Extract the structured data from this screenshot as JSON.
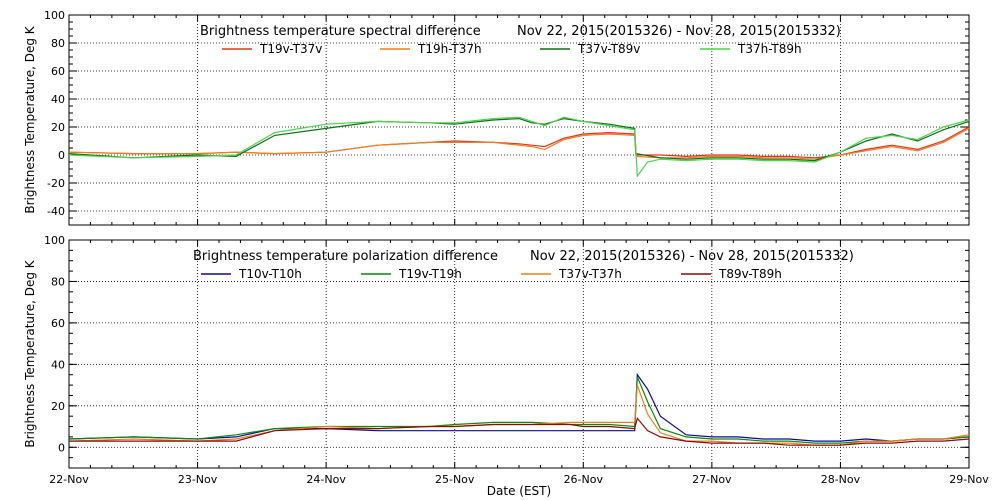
{
  "chart_data": [
    {
      "type": "line",
      "title": "Brightness temperature spectral difference",
      "date_range": "Nov 22, 2015(2015326) - Nov 28, 2015(2015332)",
      "ylabel": "Brightness Temperature, Deg K",
      "xlabel": "",
      "xlim": [
        0,
        7
      ],
      "ylim": [
        -50,
        100
      ],
      "yticks": [
        -40,
        -20,
        0,
        20,
        40,
        60,
        80,
        100
      ],
      "grid": true,
      "legend_position": "top",
      "series": [
        {
          "name": "T19v-T37v",
          "color": "#e8321e",
          "x": [
            0,
            0.5,
            1,
            1.3,
            1.6,
            2,
            2.4,
            2.8,
            3,
            3.3,
            3.5,
            3.6,
            3.7,
            3.85,
            4,
            4.2,
            4.4,
            4.41,
            4.6,
            4.8,
            5,
            5.2,
            5.4,
            5.6,
            5.8,
            6,
            6.2,
            6.4,
            6.6,
            6.8,
            7
          ],
          "y": [
            2,
            1,
            1,
            2,
            1,
            2,
            7,
            9,
            10,
            9,
            8,
            7,
            6,
            12,
            15,
            16,
            15,
            0,
            0,
            -1,
            0,
            0,
            -1,
            -1,
            -2,
            0,
            4,
            7,
            4,
            10,
            20
          ]
        },
        {
          "name": "T19h-T37h",
          "color": "#e8801e",
          "x": [
            0,
            0.5,
            1,
            1.3,
            1.6,
            2,
            2.4,
            2.8,
            3,
            3.3,
            3.5,
            3.6,
            3.7,
            3.85,
            4,
            4.2,
            4.4,
            4.41,
            4.6,
            4.8,
            5,
            5.2,
            5.4,
            5.6,
            5.8,
            6,
            6.2,
            6.4,
            6.6,
            6.8,
            7
          ],
          "y": [
            2,
            1,
            1,
            2,
            1,
            2,
            7,
            9,
            9,
            9,
            7,
            6,
            4,
            11,
            14,
            15,
            14,
            -1,
            -2,
            -2,
            -1,
            -1,
            -2,
            -2,
            -3,
            0,
            3,
            6,
            3,
            9,
            19
          ]
        },
        {
          "name": "T37v-T89v",
          "color": "#0f6e14",
          "x": [
            0,
            0.5,
            1,
            1.3,
            1.6,
            2,
            2.4,
            2.8,
            3,
            3.3,
            3.5,
            3.6,
            3.7,
            3.85,
            4,
            4.2,
            4.4,
            4.41,
            4.6,
            4.8,
            5,
            5.2,
            5.4,
            5.6,
            5.8,
            6,
            6.2,
            6.4,
            6.6,
            6.8,
            7
          ],
          "y": [
            1,
            -2,
            0,
            -1,
            14,
            19,
            24,
            23,
            22,
            25,
            26,
            23,
            22,
            26,
            24,
            22,
            19,
            1,
            -2,
            -3,
            -2,
            -2,
            -3,
            -3,
            -4,
            2,
            10,
            15,
            10,
            18,
            24
          ]
        },
        {
          "name": "T37h-T89h",
          "color": "#4cd44c",
          "x": [
            0,
            0.5,
            1,
            1.3,
            1.6,
            2,
            2.4,
            2.8,
            3,
            3.3,
            3.5,
            3.6,
            3.7,
            3.85,
            4,
            4.2,
            4.4,
            4.42,
            4.5,
            4.6,
            4.8,
            5,
            5.2,
            5.4,
            5.6,
            5.8,
            6,
            6.2,
            6.4,
            6.6,
            6.8,
            7
          ],
          "y": [
            0,
            -2,
            -1,
            0,
            16,
            22,
            24,
            23,
            23,
            26,
            27,
            24,
            21,
            27,
            24,
            21,
            18,
            -15,
            -5,
            -3,
            -4,
            -3,
            -3,
            -4,
            -4,
            -5,
            2,
            12,
            14,
            11,
            20,
            25
          ]
        }
      ]
    },
    {
      "type": "line",
      "title": "Brightness temperature polarization difference",
      "date_range": "Nov 22, 2015(2015326) - Nov 28, 2015(2015332)",
      "ylabel": "Brightness Temperature, Deg K",
      "xlabel": "Date (EST)",
      "xlim": [
        0,
        7
      ],
      "ylim": [
        -10,
        100
      ],
      "yticks": [
        0,
        20,
        40,
        60,
        80,
        100
      ],
      "xticks": [
        "22-Nov",
        "23-Nov",
        "24-Nov",
        "25-Nov",
        "26-Nov",
        "27-Nov",
        "28-Nov",
        "29-Nov"
      ],
      "grid": true,
      "legend_position": "top",
      "series": [
        {
          "name": "T10v-T10h",
          "color": "#0a0aa0",
          "x": [
            0,
            0.5,
            1,
            1.3,
            1.6,
            2,
            2.4,
            2.8,
            3,
            3.3,
            3.6,
            3.9,
            4,
            4.2,
            4.4,
            4.42,
            4.5,
            4.6,
            4.8,
            5,
            5.2,
            5.4,
            5.6,
            5.8,
            6,
            6.2,
            6.4,
            6.6,
            6.8,
            7
          ],
          "y": [
            4,
            5,
            4,
            5,
            9,
            9,
            8,
            8,
            8,
            8,
            8,
            8,
            8,
            8,
            8,
            35,
            28,
            15,
            6,
            5,
            5,
            4,
            4,
            3,
            3,
            4,
            3,
            4,
            4,
            5
          ]
        },
        {
          "name": "T19v-T19h",
          "color": "#0a8a0a",
          "x": [
            0,
            0.5,
            1,
            1.3,
            1.6,
            2,
            2.4,
            2.8,
            3,
            3.3,
            3.6,
            3.9,
            4,
            4.2,
            4.4,
            4.42,
            4.5,
            4.6,
            4.8,
            5,
            5.2,
            5.4,
            5.6,
            5.8,
            6,
            6.2,
            6.4,
            6.6,
            6.8,
            7
          ],
          "y": [
            4,
            5,
            4,
            6,
            9,
            10,
            10,
            10,
            11,
            12,
            12,
            11,
            11,
            11,
            10,
            34,
            22,
            9,
            5,
            4,
            4,
            3,
            3,
            2,
            2,
            3,
            3,
            4,
            4,
            5
          ]
        },
        {
          "name": "T37v-T37h",
          "color": "#e8801e",
          "x": [
            0,
            0.5,
            1,
            1.3,
            1.6,
            2,
            2.4,
            2.8,
            3,
            3.3,
            3.6,
            3.9,
            4,
            4.2,
            4.4,
            4.42,
            4.5,
            4.6,
            4.8,
            5,
            5.2,
            5.4,
            5.6,
            5.8,
            6,
            6.2,
            6.4,
            6.6,
            6.8,
            7
          ],
          "y": [
            3,
            4,
            3,
            4,
            8,
            10,
            9,
            10,
            10,
            11,
            11,
            12,
            12,
            12,
            12,
            30,
            16,
            7,
            3,
            3,
            2,
            2,
            2,
            1,
            1,
            3,
            3,
            4,
            4,
            6
          ]
        },
        {
          "name": "T89v-T89h",
          "color": "#8a0a0a",
          "x": [
            0,
            0.5,
            1,
            1.3,
            1.6,
            2,
            2.4,
            2.8,
            3,
            3.3,
            3.6,
            3.9,
            4,
            4.2,
            4.4,
            4.42,
            4.5,
            4.6,
            4.8,
            5,
            5.2,
            5.4,
            5.6,
            5.8,
            6,
            6.2,
            6.4,
            6.6,
            6.8,
            7
          ],
          "y": [
            3,
            3,
            3,
            3,
            8,
            9,
            9,
            10,
            10,
            11,
            11,
            11,
            10,
            10,
            9,
            14,
            8,
            5,
            3,
            2,
            2,
            2,
            1,
            1,
            1,
            2,
            2,
            3,
            3,
            4
          ]
        }
      ]
    }
  ]
}
